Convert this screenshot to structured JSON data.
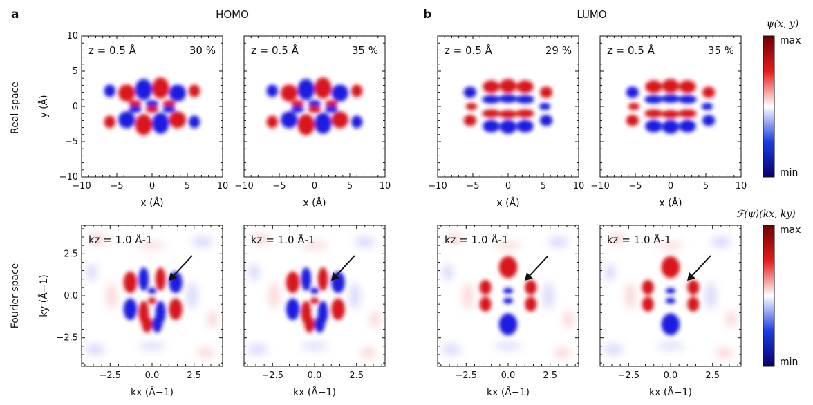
{
  "figure": {
    "panel_letters": [
      "a",
      "b"
    ],
    "group_titles": [
      "HOMO",
      "LUMO"
    ],
    "row_labels": [
      "Real space",
      "Fourier space"
    ],
    "colorbars": [
      {
        "title": "ψ(x, y)",
        "max_label": "max",
        "min_label": "min"
      },
      {
        "title": "ℱ(ψ)(kx, ky)",
        "max_label": "max",
        "min_label": "min"
      }
    ]
  },
  "chart_data": [
    {
      "type": "heatmap",
      "group": "HOMO",
      "row": "Real space",
      "annotation": "z = 0.5 Å",
      "percent": "30 %",
      "xlabel": "x (Å)",
      "ylabel": "y (Å)",
      "xlim": [
        -10,
        10
      ],
      "ylim": [
        -10,
        10
      ],
      "xticks": [
        "−10",
        "−5",
        "0",
        "5",
        "10"
      ],
      "yticks": [
        "−10",
        "−5",
        "0",
        "5",
        "10"
      ],
      "orbital": "homo",
      "colormap": [
        "#08006a",
        "#1a3de6",
        "#ffffff",
        "#e61a1a",
        "#6e0000"
      ]
    },
    {
      "type": "heatmap",
      "group": "HOMO",
      "row": "Real space",
      "annotation": "z = 0.5 Å",
      "percent": "35 %",
      "xlabel": "x (Å)",
      "ylabel": "",
      "xlim": [
        -10,
        10
      ],
      "ylim": [
        -10,
        10
      ],
      "xticks": [
        "−10",
        "−5",
        "0",
        "5",
        "10"
      ],
      "yticks": [],
      "orbital": "homo",
      "colormap": [
        "#08006a",
        "#1a3de6",
        "#ffffff",
        "#e61a1a",
        "#6e0000"
      ]
    },
    {
      "type": "heatmap",
      "group": "LUMO",
      "row": "Real space",
      "annotation": "z = 0.5 Å",
      "percent": "29 %",
      "xlabel": "x (Å)",
      "ylabel": "",
      "xlim": [
        -10,
        10
      ],
      "ylim": [
        -10,
        10
      ],
      "xticks": [
        "−10",
        "−5",
        "0",
        "5",
        "10"
      ],
      "yticks": [],
      "orbital": "lumo",
      "colormap": [
        "#08006a",
        "#1a3de6",
        "#ffffff",
        "#e61a1a",
        "#6e0000"
      ]
    },
    {
      "type": "heatmap",
      "group": "LUMO",
      "row": "Real space",
      "annotation": "z = 0.5 Å",
      "percent": "35 %",
      "xlabel": "x (Å)",
      "ylabel": "",
      "xlim": [
        -10,
        10
      ],
      "ylim": [
        -10,
        10
      ],
      "xticks": [
        "−10",
        "−5",
        "0",
        "5",
        "10"
      ],
      "yticks": [],
      "orbital": "lumo",
      "colormap": [
        "#08006a",
        "#1a3de6",
        "#ffffff",
        "#e61a1a",
        "#6e0000"
      ]
    },
    {
      "type": "heatmap",
      "group": "HOMO",
      "row": "Fourier space",
      "annotation": "kz = 1.0 Å-1",
      "percent": "",
      "xlabel": "kx (Å−1)",
      "ylabel": "ky (Å−1)",
      "xlim": [
        -4.2,
        4.2
      ],
      "ylim": [
        -4.2,
        4.2
      ],
      "xticks": [
        "−2.5",
        "0.0",
        "2.5"
      ],
      "yticks": [
        "−2.5",
        "0.0",
        "2.5"
      ],
      "orbital": "homo_k",
      "arrow": true,
      "colormap": [
        "#08006a",
        "#1a3de6",
        "#ffffff",
        "#e61a1a",
        "#6e0000"
      ]
    },
    {
      "type": "heatmap",
      "group": "HOMO",
      "row": "Fourier space",
      "annotation": "kz = 1.0 Å-1",
      "percent": "",
      "xlabel": "kx (Å−1)",
      "ylabel": "",
      "xlim": [
        -4.2,
        4.2
      ],
      "ylim": [
        -4.2,
        4.2
      ],
      "xticks": [
        "−2.5",
        "0.0",
        "2.5"
      ],
      "yticks": [],
      "orbital": "homo_k",
      "arrow": true,
      "colormap": [
        "#08006a",
        "#1a3de6",
        "#ffffff",
        "#e61a1a",
        "#6e0000"
      ]
    },
    {
      "type": "heatmap",
      "group": "LUMO",
      "row": "Fourier space",
      "annotation": "kz = 1.0 Å-1",
      "percent": "",
      "xlabel": "kx (Å−1)",
      "ylabel": "",
      "xlim": [
        -4.2,
        4.2
      ],
      "ylim": [
        -4.2,
        4.2
      ],
      "xticks": [
        "−2.5",
        "0.0",
        "2.5"
      ],
      "yticks": [],
      "orbital": "lumo_k",
      "arrow": true,
      "colormap": [
        "#08006a",
        "#1a3de6",
        "#ffffff",
        "#e61a1a",
        "#6e0000"
      ]
    },
    {
      "type": "heatmap",
      "group": "LUMO",
      "row": "Fourier space",
      "annotation": "kz = 1.0 Å-1",
      "percent": "",
      "xlabel": "kx (Å−1)",
      "ylabel": "",
      "xlim": [
        -4.2,
        4.2
      ],
      "ylim": [
        -4.2,
        4.2
      ],
      "xticks": [
        "−2.5",
        "0.0",
        "2.5"
      ],
      "yticks": [],
      "orbital": "lumo_k",
      "arrow": true,
      "colormap": [
        "#08006a",
        "#1a3de6",
        "#ffffff",
        "#e61a1a",
        "#6e0000"
      ]
    }
  ]
}
